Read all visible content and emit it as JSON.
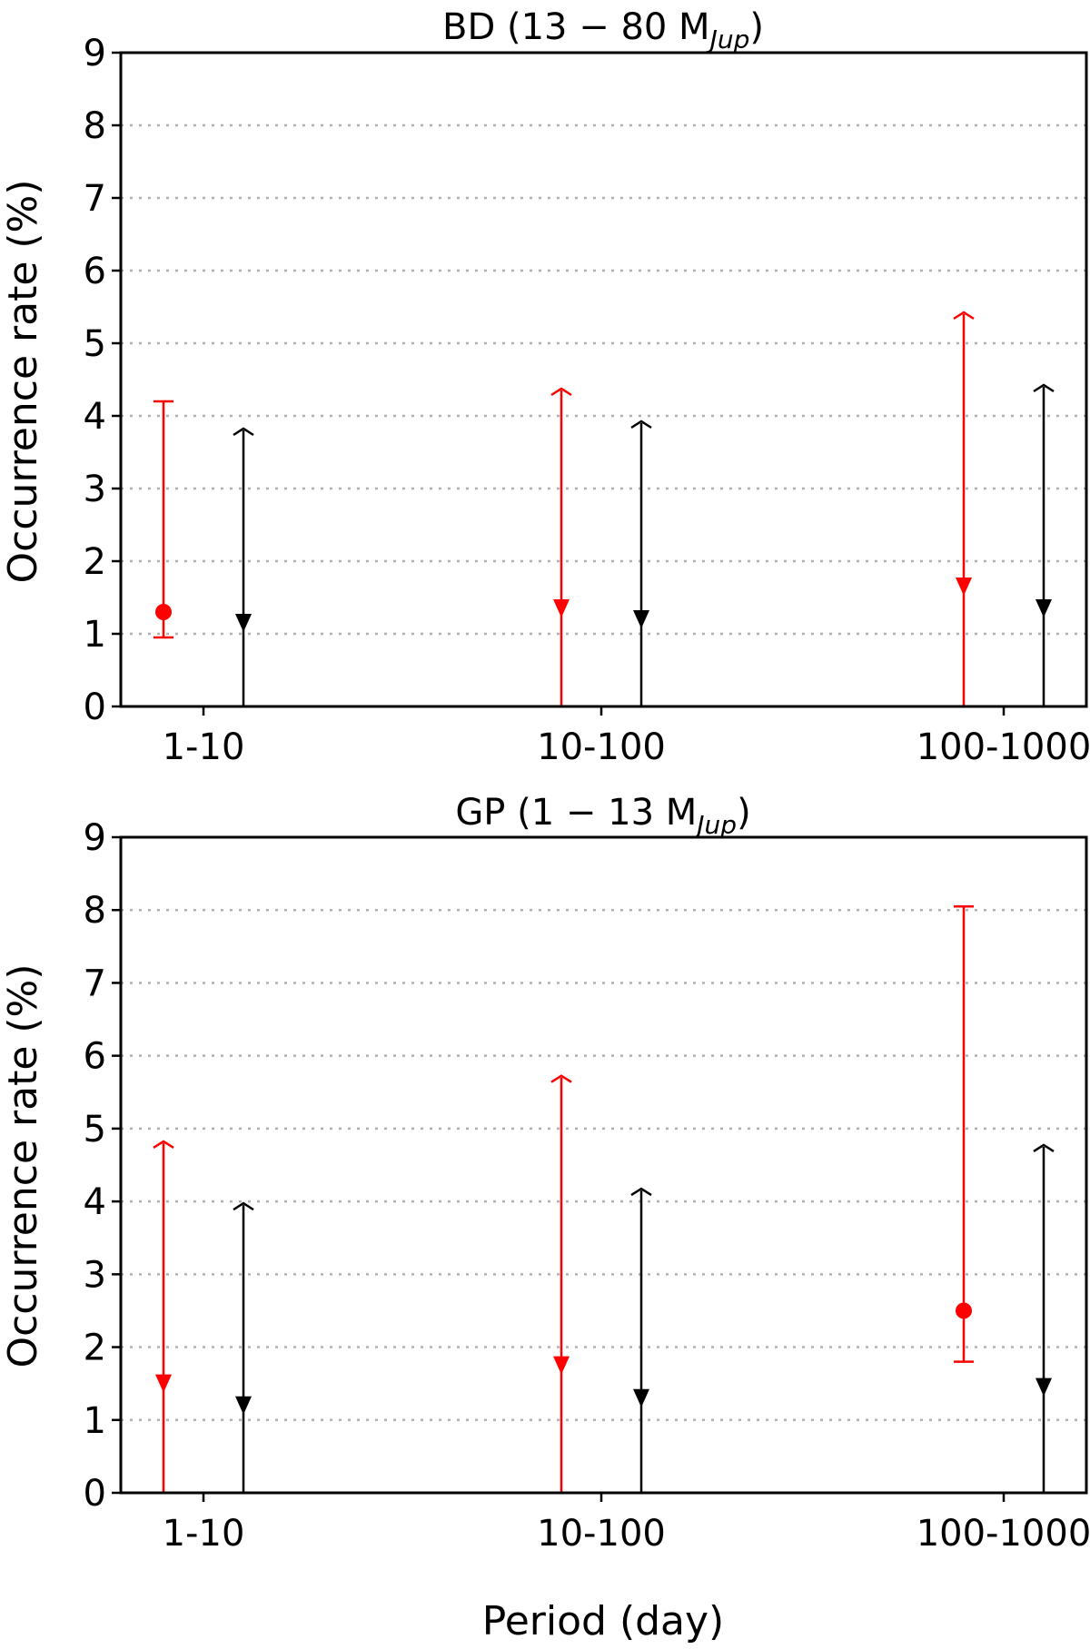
{
  "figure": {
    "xlabel": "Period (day)"
  },
  "chart_data": [
    {
      "type": "errorbar",
      "title": "BD (13 − 80 M",
      "title_subscript": "Jup",
      "title_suffix": ")",
      "ylabel": "Occurrence rate (%)",
      "xlabel": "",
      "categories": [
        "1-10",
        "10-100",
        "100-1000"
      ],
      "ylim": [
        0,
        9
      ],
      "yticks": [
        "0",
        "1",
        "2",
        "3",
        "4",
        "5",
        "6",
        "7",
        "8",
        "9"
      ],
      "grid": "horizontal dotted",
      "colors": {
        "series_red": "#ff0000",
        "series_black": "#000000",
        "grid": "#b0b0b0"
      },
      "series": [
        {
          "color": "#ff0000",
          "offset": "left",
          "points": [
            {
              "category": "1-10",
              "value": 1.3,
              "low": 0.95,
              "high": 4.2,
              "marker": "circle"
            },
            {
              "category": "10-100",
              "value": 1.35,
              "low": 0,
              "high": 4.35,
              "marker": "upper-limit"
            },
            {
              "category": "100-1000",
              "value": 1.65,
              "low": 0,
              "high": 5.4,
              "marker": "upper-limit"
            }
          ]
        },
        {
          "color": "#000000",
          "offset": "right",
          "points": [
            {
              "category": "1-10",
              "value": 1.15,
              "low": 0,
              "high": 3.8,
              "marker": "upper-limit"
            },
            {
              "category": "10-100",
              "value": 1.2,
              "low": 0,
              "high": 3.9,
              "marker": "upper-limit"
            },
            {
              "category": "100-1000",
              "value": 1.35,
              "low": 0,
              "high": 4.4,
              "marker": "upper-limit"
            }
          ]
        }
      ]
    },
    {
      "type": "errorbar",
      "title": "GP (1 − 13 M",
      "title_subscript": "Jup",
      "title_suffix": ")",
      "ylabel": "Occurrence rate (%)",
      "xlabel": "Period (day)",
      "categories": [
        "1-10",
        "10-100",
        "100-1000"
      ],
      "ylim": [
        0,
        9
      ],
      "yticks": [
        "0",
        "1",
        "2",
        "3",
        "4",
        "5",
        "6",
        "7",
        "8",
        "9"
      ],
      "grid": "horizontal dotted",
      "colors": {
        "series_red": "#ff0000",
        "series_black": "#000000",
        "grid": "#b0b0b0"
      },
      "series": [
        {
          "color": "#ff0000",
          "offset": "left",
          "points": [
            {
              "category": "1-10",
              "value": 1.5,
              "low": 0,
              "high": 4.8,
              "marker": "upper-limit"
            },
            {
              "category": "10-100",
              "value": 1.75,
              "low": 0,
              "high": 5.7,
              "marker": "upper-limit"
            },
            {
              "category": "100-1000",
              "value": 2.5,
              "low": 1.8,
              "high": 8.05,
              "marker": "circle"
            }
          ]
        },
        {
          "color": "#000000",
          "offset": "right",
          "points": [
            {
              "category": "1-10",
              "value": 1.2,
              "low": 0,
              "high": 3.95,
              "marker": "upper-limit"
            },
            {
              "category": "10-100",
              "value": 1.3,
              "low": 0,
              "high": 4.15,
              "marker": "upper-limit"
            },
            {
              "category": "100-1000",
              "value": 1.45,
              "low": 0,
              "high": 4.75,
              "marker": "upper-limit"
            }
          ]
        }
      ]
    }
  ]
}
